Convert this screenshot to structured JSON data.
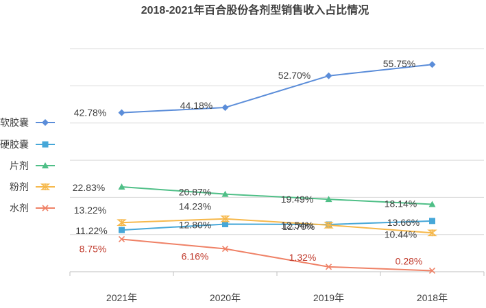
{
  "chart_data": {
    "type": "line",
    "title": "2018-2021年百合股份各剂型销售收入占比情况",
    "categories": [
      "2021年",
      "2020年",
      "2019年",
      "2018年"
    ],
    "ylim": [
      0,
      65
    ],
    "grid": true,
    "legend_position": "left",
    "series": [
      {
        "name": "软胶囊",
        "values": [
          42.78,
          44.18,
          52.7,
          55.75
        ],
        "labels": [
          "42.78%",
          "44.18%",
          "52.70%",
          "55.75%"
        ],
        "color": "#5b8dd9",
        "marker": "diamond"
      },
      {
        "name": "硬胶囊",
        "values": [
          11.22,
          12.8,
          12.7,
          13.66
        ],
        "labels": [
          "11.22%",
          "12.80%",
          "12.70%",
          "13.66%"
        ],
        "color": "#46a7d8",
        "marker": "square"
      },
      {
        "name": "片剂",
        "values": [
          22.83,
          20.87,
          19.49,
          18.14
        ],
        "labels": [
          "22.83%",
          "20.87%",
          "19.49%",
          "18.14%"
        ],
        "color": "#4fbf87",
        "marker": "triangle"
      },
      {
        "name": "粉剂",
        "values": [
          13.22,
          14.23,
          12.54,
          10.44
        ],
        "labels": [
          "13.22%",
          "14.23%",
          "12.54%",
          "10.44%"
        ],
        "color": "#f6b84b",
        "marker": "star"
      },
      {
        "name": "水剂",
        "values": [
          8.75,
          6.16,
          1.32,
          0.28
        ],
        "labels": [
          "8.75%",
          "6.16%",
          "1.32%",
          "0.28%"
        ],
        "color": "#ef8166",
        "marker": "x",
        "label_color": "#c0392b"
      }
    ]
  }
}
